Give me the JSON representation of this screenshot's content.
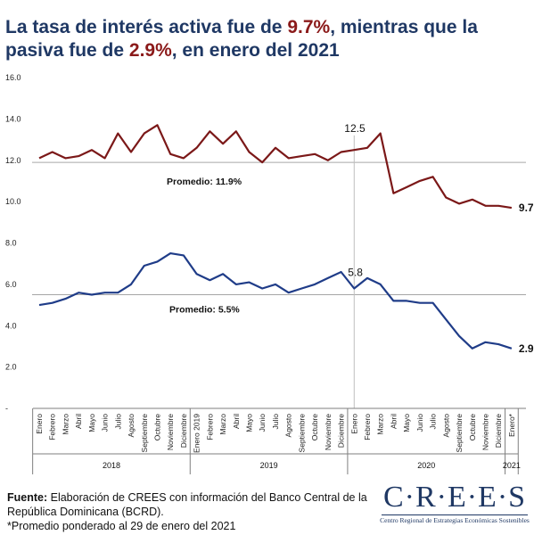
{
  "title": {
    "part1": "La tasa de interés activa fue de ",
    "active_value": "9.7%",
    "part2": ", mientras que la pasiva fue de ",
    "passive_value": "2.9%",
    "part3": ", en enero del 2021"
  },
  "chart_data": {
    "type": "line",
    "x": [
      "Enero",
      "Febrero",
      "Marzo",
      "Abril",
      "Mayo",
      "Junio",
      "Julio",
      "Agosto",
      "Septiembre",
      "Octubre",
      "Noviembre",
      "Diciembre",
      "Enero 2019",
      "Febrero",
      "Marzo",
      "Abril",
      "Mayo",
      "Junio",
      "Julio",
      "Agosto",
      "Septiembre",
      "Octubre",
      "Noviembre",
      "Diciembre",
      "Enero",
      "Febrero",
      "Marzo",
      "Abril",
      "Mayo",
      "Junio",
      "Julio",
      "Agosto",
      "Septiembre",
      "Octubre",
      "Noviembre",
      "Diciembre",
      "Enero*"
    ],
    "x_groups": [
      {
        "label": "2018",
        "start": 0,
        "end": 11
      },
      {
        "label": "2019",
        "start": 12,
        "end": 23
      },
      {
        "label": "2020",
        "start": 24,
        "end": 35
      },
      {
        "label": "2021",
        "start": 36,
        "end": 36
      }
    ],
    "series": [
      {
        "values": [
          12.1,
          12.4,
          12.1,
          12.2,
          12.5,
          12.1,
          13.3,
          12.4,
          13.3,
          13.7,
          12.3,
          12.1,
          12.6,
          13.4,
          12.8,
          13.4,
          12.4,
          11.9,
          12.6,
          12.1,
          12.2,
          12.3,
          12.0,
          12.4,
          12.5,
          12.6,
          13.3,
          10.4,
          10.7,
          11.0,
          11.2,
          10.2,
          9.9,
          10.1,
          9.8,
          9.8,
          9.7
        ],
        "color": "#7b1818"
      },
      {
        "values": [
          5.0,
          5.1,
          5.3,
          5.6,
          5.5,
          5.6,
          5.6,
          6.0,
          6.9,
          7.1,
          7.5,
          7.4,
          6.5,
          6.2,
          6.5,
          6.0,
          6.1,
          5.8,
          6.0,
          5.6,
          5.8,
          6.0,
          6.3,
          6.6,
          5.8,
          6.3,
          6.0,
          5.2,
          5.2,
          5.1,
          5.1,
          4.3,
          3.5,
          2.9,
          3.2,
          3.1,
          2.9
        ],
        "color": "#1f3c88"
      }
    ],
    "ylim": [
      0,
      16
    ],
    "yticks": [
      "-",
      "2.0",
      "4.0",
      "6.0",
      "8.0",
      "10.0",
      "12.0",
      "14.0",
      "16.0"
    ],
    "grid": false,
    "annotations": {
      "active_jan2020": "12.5",
      "passive_jan2020": "5.8",
      "active_last": "9.7",
      "passive_last": "2.9",
      "active_avg_label": "Promedio: 11.9%",
      "passive_avg_label": "Promedio: 5.5%",
      "active_avg": 11.9,
      "passive_avg": 5.5
    }
  },
  "footer": {
    "source_label": "Fuente:",
    "source_text": " Elaboración de CREES con información del Banco Central de la República Dominicana (BCRD).",
    "note": "*Promedio ponderado al 29 de enero del 2021"
  },
  "logo": {
    "name": "C·R·E·E·S",
    "subtitle": "Centro Regional de Estrategias Económicas Sostenibles"
  }
}
